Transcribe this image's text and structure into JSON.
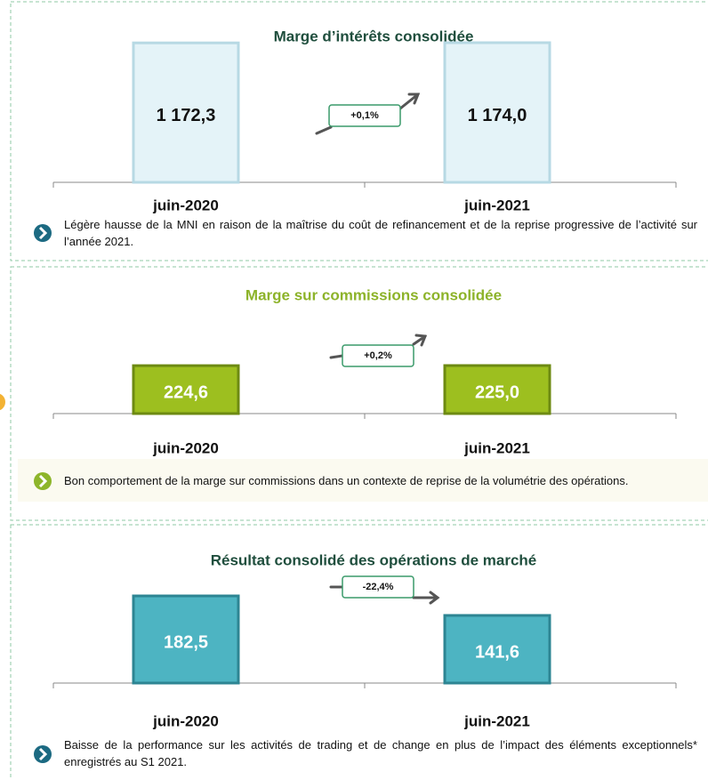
{
  "chart_data": [
    {
      "type": "bar",
      "title": "Marge d’intérêts consolidée",
      "categories": [
        "juin-2020",
        "juin-2021"
      ],
      "values": [
        1172.3,
        1174.0
      ],
      "value_labels": [
        "1 172,3",
        "1 174,0"
      ],
      "color": "#e4f3f8",
      "annotation": "+0,1%",
      "note": "Légère hausse de la MNI en raison de la maîtrise du coût de refinancement et de la reprise progressive de l’activité sur l’année 2021."
    },
    {
      "type": "bar",
      "title": "Marge sur commissions consolidée",
      "categories": [
        "juin-2020",
        "juin-2021"
      ],
      "values": [
        224.6,
        225.0
      ],
      "value_labels": [
        "224,6",
        "225,0"
      ],
      "color": "#9dbf1f",
      "annotation": "+0,2%",
      "note": "Bon comportement de la marge sur commissions dans un contexte de reprise de la volumétrie des opérations."
    },
    {
      "type": "bar",
      "title": "Résultat consolidé des opérations de marché",
      "categories": [
        "juin-2020",
        "juin-2021"
      ],
      "values": [
        182.5,
        141.6
      ],
      "value_labels": [
        "182,5",
        "141,6"
      ],
      "color": "#4db4c2",
      "annotation": "-22,4%",
      "note": "Baisse de la performance sur les activités de trading et de change en plus de l’impact des éléments exceptionnels* enregistrés au S1 2021."
    }
  ]
}
